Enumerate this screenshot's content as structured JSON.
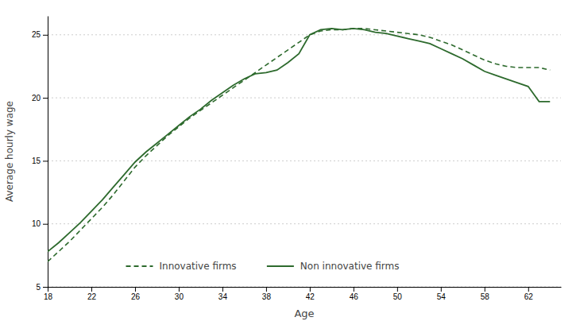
{
  "chart_data": {
    "type": "line",
    "x": [
      18,
      19,
      20,
      21,
      22,
      23,
      24,
      25,
      26,
      27,
      28,
      29,
      30,
      31,
      32,
      33,
      34,
      35,
      36,
      37,
      38,
      39,
      40,
      41,
      42,
      43,
      44,
      45,
      46,
      47,
      48,
      49,
      50,
      51,
      52,
      53,
      54,
      55,
      56,
      57,
      58,
      59,
      60,
      61,
      62,
      63,
      64
    ],
    "series": [
      {
        "name": "Innovative firms",
        "color": "#2d6a2d",
        "line_style": "dashed",
        "values": [
          7.0,
          7.8,
          8.6,
          9.5,
          10.4,
          11.3,
          12.3,
          13.4,
          14.5,
          15.4,
          16.2,
          17.0,
          17.7,
          18.4,
          19.0,
          19.6,
          20.2,
          20.8,
          21.4,
          22.0,
          22.6,
          23.2,
          23.8,
          24.4,
          25.0,
          25.3,
          25.4,
          25.4,
          25.5,
          25.5,
          25.4,
          25.3,
          25.2,
          25.1,
          25.0,
          24.8,
          24.5,
          24.2,
          23.8,
          23.4,
          23.0,
          22.7,
          22.5,
          22.4,
          22.4,
          22.4,
          22.2
        ]
      },
      {
        "name": "Non innovative firms",
        "color": "#2d6a2d",
        "line_style": "solid",
        "values": [
          7.8,
          8.5,
          9.3,
          10.1,
          11.0,
          11.9,
          12.9,
          13.9,
          14.9,
          15.7,
          16.4,
          17.1,
          17.8,
          18.5,
          19.1,
          19.8,
          20.4,
          21.0,
          21.5,
          21.9,
          22.0,
          22.2,
          22.8,
          23.5,
          25.0,
          25.4,
          25.5,
          25.4,
          25.5,
          25.4,
          25.2,
          25.1,
          24.9,
          24.7,
          24.5,
          24.3,
          23.9,
          23.5,
          23.1,
          22.6,
          22.1,
          21.8,
          21.5,
          21.2,
          20.9,
          19.7,
          19.7
        ]
      }
    ],
    "xlabel": "Age",
    "ylabel": "Average hourly wage",
    "xlim": [
      18,
      65
    ],
    "ylim": [
      5,
      26.5
    ],
    "xticks": [
      18,
      22,
      26,
      30,
      34,
      38,
      42,
      46,
      50,
      54,
      58,
      62
    ],
    "yticks": [
      5,
      10,
      15,
      20,
      25
    ],
    "grid": true,
    "legend": "bottom"
  }
}
